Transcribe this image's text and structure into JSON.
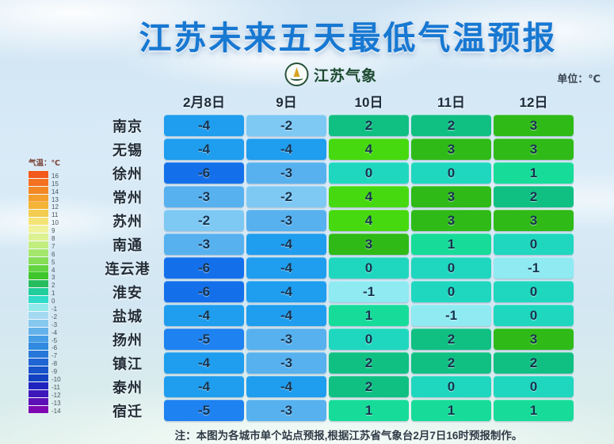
{
  "title": "江苏未来五天最低气温预报",
  "logo": {
    "text": "江苏气象"
  },
  "unit_label": "单位：℃",
  "note": "注：本图为各城市单个站点预报,根据江苏省气象台2月7日16时预报制作。",
  "chart_data": {
    "type": "heatmap",
    "title": "江苏未来五天最低气温预报",
    "unit": "℃",
    "x_categories": [
      "2月8日",
      "9日",
      "10日",
      "11日",
      "12日"
    ],
    "rows": [
      {
        "city": "南京",
        "temps": [
          -4,
          -2,
          2,
          2,
          3
        ]
      },
      {
        "city": "无锡",
        "temps": [
          -4,
          -4,
          4,
          3,
          3
        ]
      },
      {
        "city": "徐州",
        "temps": [
          -6,
          -3,
          0,
          0,
          1
        ]
      },
      {
        "city": "常州",
        "temps": [
          -3,
          -2,
          4,
          3,
          2
        ]
      },
      {
        "city": "苏州",
        "temps": [
          -2,
          -3,
          4,
          3,
          3
        ]
      },
      {
        "city": "南通",
        "temps": [
          -3,
          -4,
          3,
          1,
          0
        ]
      },
      {
        "city": "连云港",
        "temps": [
          -6,
          -4,
          0,
          0,
          -1
        ]
      },
      {
        "city": "淮安",
        "temps": [
          -6,
          -4,
          -1,
          0,
          0
        ]
      },
      {
        "city": "盐城",
        "temps": [
          -4,
          -4,
          1,
          -1,
          0
        ]
      },
      {
        "city": "扬州",
        "temps": [
          -5,
          -3,
          0,
          2,
          3
        ]
      },
      {
        "city": "镇江",
        "temps": [
          -4,
          -3,
          2,
          2,
          2
        ]
      },
      {
        "city": "泰州",
        "temps": [
          -4,
          -4,
          2,
          0,
          0
        ]
      },
      {
        "city": "宿迁",
        "temps": [
          -5,
          -3,
          1,
          1,
          1
        ]
      }
    ],
    "value_colors": {
      "-6": "#1470ea",
      "-5": "#1e82f0",
      "-4": "#1f9dee",
      "-3": "#57b1ef",
      "-2": "#7ec9f4",
      "-1": "#8feaf2",
      "0": "#1fd7bf",
      "1": "#17dc99",
      "2": "#10c083",
      "3": "#2fba17",
      "4": "#47d90f"
    },
    "legend": {
      "title": "气温：℃",
      "range": [
        -14,
        16
      ],
      "entries": [
        {
          "label": "16",
          "color": "#f2591b"
        },
        {
          "label": "15",
          "color": "#f3711f"
        },
        {
          "label": "14",
          "color": "#f38724"
        },
        {
          "label": "13",
          "color": "#f49e2c"
        },
        {
          "label": "12",
          "color": "#f4b438"
        },
        {
          "label": "11",
          "color": "#f3cd50"
        },
        {
          "label": "10",
          "color": "#f4e476"
        },
        {
          "label": "9",
          "color": "#f0f29a"
        },
        {
          "label": "8",
          "color": "#dcf292"
        },
        {
          "label": "7",
          "color": "#c2ee80"
        },
        {
          "label": "6",
          "color": "#a5e76c"
        },
        {
          "label": "5",
          "color": "#85de56"
        },
        {
          "label": "4",
          "color": "#62d441"
        },
        {
          "label": "3",
          "color": "#3fc62c"
        },
        {
          "label": "2",
          "color": "#27bd5e"
        },
        {
          "label": "1",
          "color": "#21cd9c"
        },
        {
          "label": "0",
          "color": "#30dcc8"
        },
        {
          "label": "-1",
          "color": "#8fe9ea"
        },
        {
          "label": "-2",
          "color": "#a4d9f2"
        },
        {
          "label": "-3",
          "color": "#86c8ee"
        },
        {
          "label": "-4",
          "color": "#63b2ea"
        },
        {
          "label": "-5",
          "color": "#459de6"
        },
        {
          "label": "-6",
          "color": "#2f8ae0"
        },
        {
          "label": "-7",
          "color": "#2677d9"
        },
        {
          "label": "-8",
          "color": "#1e64d2"
        },
        {
          "label": "-9",
          "color": "#1753ca"
        },
        {
          "label": "-10",
          "color": "#1241c2"
        },
        {
          "label": "-11",
          "color": "#2023be"
        },
        {
          "label": "-12",
          "color": "#3d17ba"
        },
        {
          "label": "-13",
          "color": "#5c0fb6"
        },
        {
          "label": "-14",
          "color": "#7d07b2"
        }
      ]
    }
  }
}
